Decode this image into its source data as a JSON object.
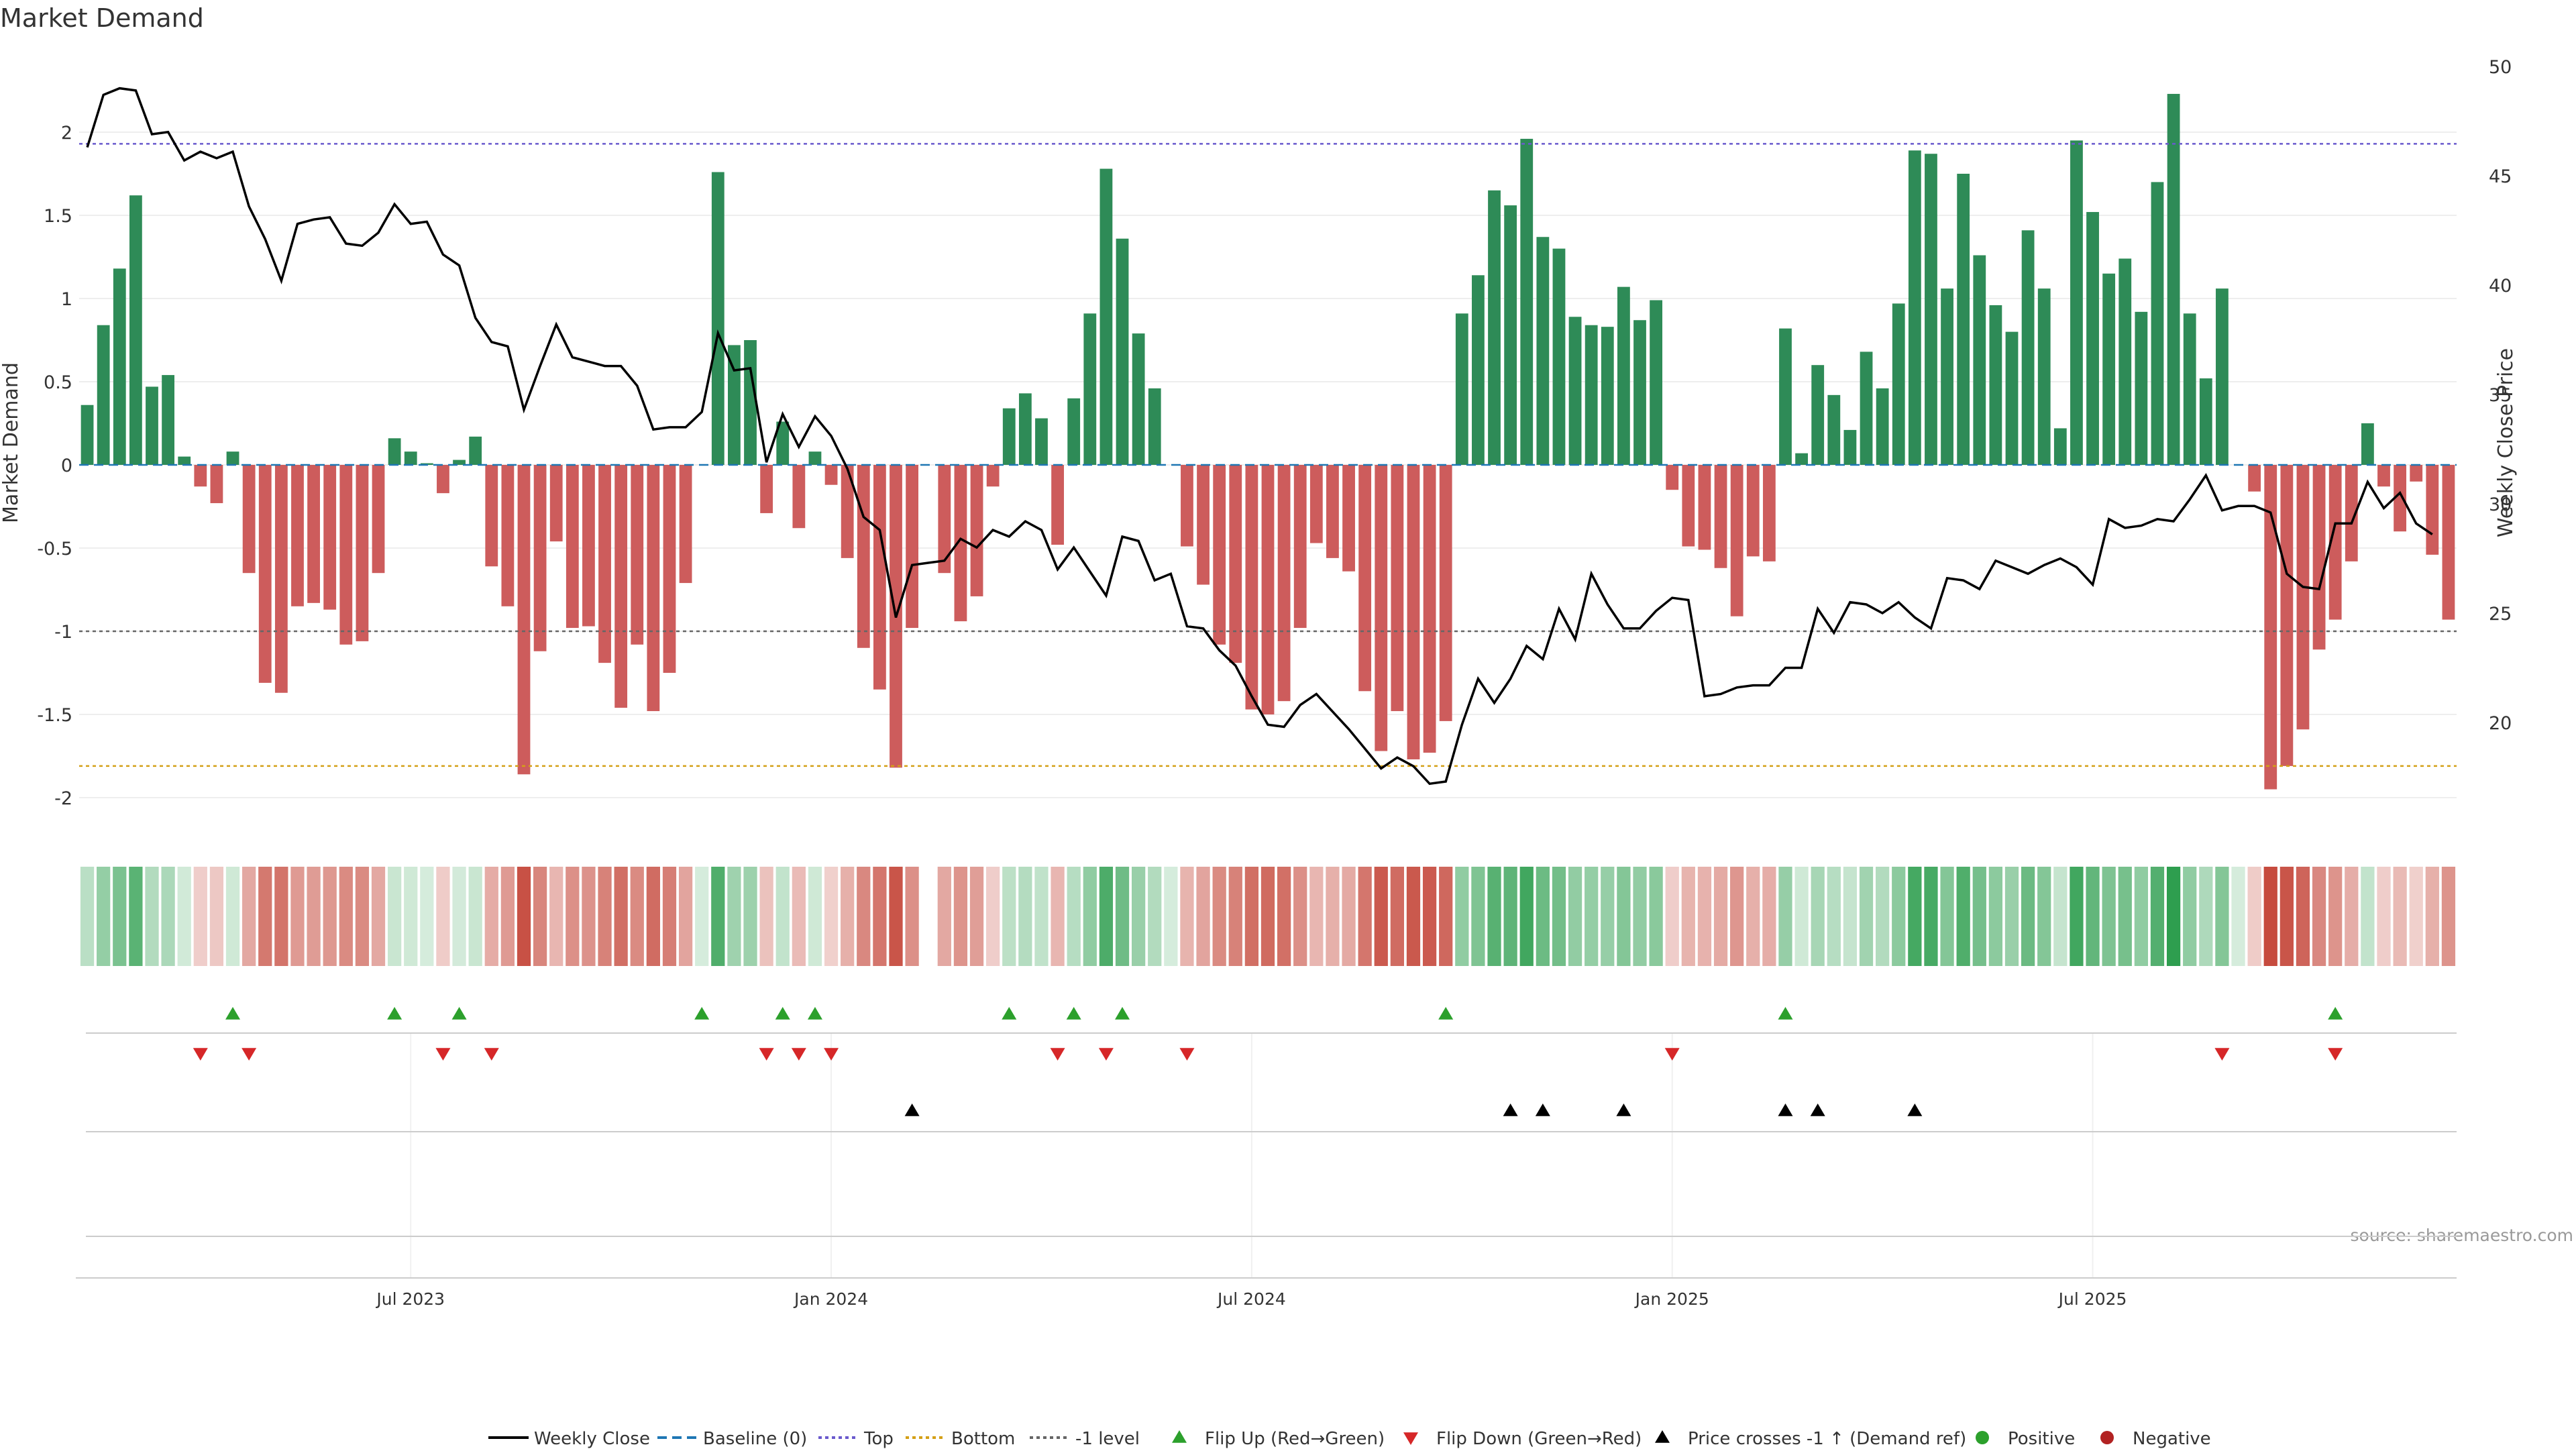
{
  "chart_data": {
    "type": "bar",
    "title": "Market Demand",
    "ylabel": "Market Demand",
    "y2label": "Weekly Close Price",
    "source": "source: sharemaestro.com",
    "ylim": [
      -2.2,
      2.5
    ],
    "y2lim": [
      15,
      51
    ],
    "yticks": [
      "-2",
      "-1.5",
      "-1",
      "-0.5",
      "0",
      "0.5",
      "1",
      "1.5",
      "2"
    ],
    "y2ticks": [
      "20",
      "25",
      "30",
      "35",
      "40",
      "45",
      "50"
    ],
    "top_level": 1.93,
    "bottom_level": -1.81,
    "minus1_level": -1,
    "xticks": [
      {
        "label": "Jul 2023",
        "week": 20
      },
      {
        "label": "Jan 2024",
        "week": 46
      },
      {
        "label": "Jul 2024",
        "week": 72
      },
      {
        "label": "Jan 2025",
        "week": 98
      },
      {
        "label": "Jul 2025",
        "week": 124
      }
    ],
    "demand": [
      0.36,
      0.84,
      1.18,
      1.62,
      0.47,
      0.54,
      0.05,
      -0.13,
      -0.23,
      0.08,
      -0.65,
      -1.31,
      -1.37,
      -0.85,
      -0.83,
      -0.87,
      -1.08,
      -1.06,
      -0.65,
      0.16,
      0.08,
      0.01,
      -0.17,
      0.03,
      0.17,
      -0.61,
      -0.85,
      -1.86,
      -1.12,
      -0.46,
      -0.98,
      -0.97,
      -1.19,
      -1.46,
      -1.08,
      -1.48,
      -1.25,
      -0.71,
      0,
      1.76,
      0.72,
      0.75,
      -0.29,
      0.26,
      -0.38,
      0.08,
      -0.12,
      -0.56,
      -1.1,
      -1.35,
      -1.82,
      -0.98,
      0,
      -0.65,
      -0.94,
      -0.79,
      -0.13,
      0.34,
      0.43,
      0.28,
      -0.48,
      0.4,
      0.91,
      1.78,
      1.36,
      0.79,
      0.46,
      0,
      -0.49,
      -0.72,
      -1.08,
      -1.19,
      -1.47,
      -1.5,
      -1.42,
      -0.98,
      -0.47,
      -0.56,
      -0.64,
      -1.36,
      -1.72,
      -1.48,
      -1.77,
      -1.73,
      -1.54,
      0.91,
      1.14,
      1.65,
      1.56,
      1.96,
      1.37,
      1.3,
      0.89,
      0.84,
      0.83,
      1.07,
      0.87,
      0.99,
      -0.15,
      -0.49,
      -0.51,
      -0.62,
      -0.91,
      -0.55,
      -0.58,
      0.82,
      0.07,
      0.6,
      0.42,
      0.21,
      0.68,
      0.46,
      0.97,
      1.89,
      1.87,
      1.06,
      1.75,
      1.26,
      0.96,
      0.8,
      1.41,
      1.06,
      0.22,
      1.95,
      1.52,
      1.15,
      1.24,
      0.92,
      1.7,
      2.23,
      0.91,
      0.52,
      1.06,
      0,
      -0.16,
      -1.95,
      -1.81,
      -1.59,
      -1.11,
      -0.93,
      -0.58,
      0.25,
      -0.13,
      -0.4,
      -0.1,
      -0.54,
      -0.93
    ],
    "close": [
      46.3,
      48.7,
      49.0,
      48.9,
      46.9,
      47.0,
      45.7,
      46.1,
      45.8,
      46.1,
      43.6,
      42.1,
      40.2,
      42.8,
      43.0,
      43.1,
      41.9,
      41.8,
      42.4,
      43.7,
      42.8,
      42.9,
      41.4,
      40.9,
      38.5,
      37.4,
      37.2,
      34.3,
      36.3,
      38.2,
      36.7,
      36.5,
      36.3,
      36.3,
      35.4,
      33.4,
      33.5,
      33.5,
      34.2,
      37.8,
      36.1,
      36.2,
      31.9,
      34.1,
      32.6,
      34.0,
      33.1,
      31.6,
      29.4,
      28.8,
      24.8,
      27.2,
      27.3,
      27.4,
      28.4,
      28.0,
      28.8,
      28.5,
      29.2,
      28.8,
      27.0,
      28.0,
      26.9,
      25.8,
      28.5,
      28.3,
      26.5,
      26.8,
      24.4,
      24.3,
      23.3,
      22.6,
      21.2,
      19.9,
      19.8,
      20.8,
      21.3,
      20.5,
      19.7,
      18.8,
      17.9,
      18.4,
      18.0,
      17.2,
      17.3,
      19.9,
      22.0,
      20.9,
      22.0,
      23.5,
      22.9,
      25.2,
      23.8,
      26.8,
      25.4,
      24.3,
      24.3,
      25.1,
      25.7,
      25.6,
      21.2,
      21.3,
      21.6,
      21.7,
      21.7,
      22.5,
      22.5,
      25.2,
      24.1,
      25.5,
      25.4,
      25.0,
      25.5,
      24.8,
      24.3,
      26.6,
      26.5,
      26.1,
      27.4,
      27.1,
      26.8,
      27.2,
      27.5,
      27.1,
      26.3,
      29.3,
      28.9,
      29.0,
      29.3,
      29.2,
      30.2,
      31.3,
      29.7,
      29.9,
      29.9,
      29.6,
      26.8,
      26.2,
      26.1,
      29.1,
      29.1,
      31.0,
      29.8,
      30.5,
      29.1,
      28.6
    ],
    "heat_strip_note": "Weekly demand heat strip (green = positive, red = negative)",
    "flip_up_weeks": [
      9,
      19,
      23,
      38,
      43,
      45,
      57,
      61,
      64,
      84,
      105,
      139
    ],
    "flip_down_weeks": [
      7,
      10,
      22,
      25,
      42,
      44,
      46,
      60,
      63,
      68,
      98,
      132,
      139
    ],
    "price_cross_weeks": [
      51,
      88,
      90,
      95,
      105,
      107,
      113
    ],
    "legend": [
      "Weekly Close",
      "Baseline (0)",
      "Top",
      "Bottom",
      "-1 level",
      "Flip Up (Red→Green)",
      "Flip Down (Green→Red)",
      "Price crosses -1 ↑ (Demand ref)",
      "Positive",
      "Negative"
    ],
    "colors": {
      "positive": "#2e8b57",
      "negative": "#cd5c5c",
      "close": "#000000",
      "baseline": "#1f77b4",
      "top": "#6a5acd",
      "bottom": "#d4a017",
      "minus1": "#666666",
      "flip_up": "#2ca02c",
      "flip_down": "#d62728",
      "cross": "#000000",
      "dot_positive": "#2ca02c",
      "dot_negative": "#b22222"
    }
  }
}
